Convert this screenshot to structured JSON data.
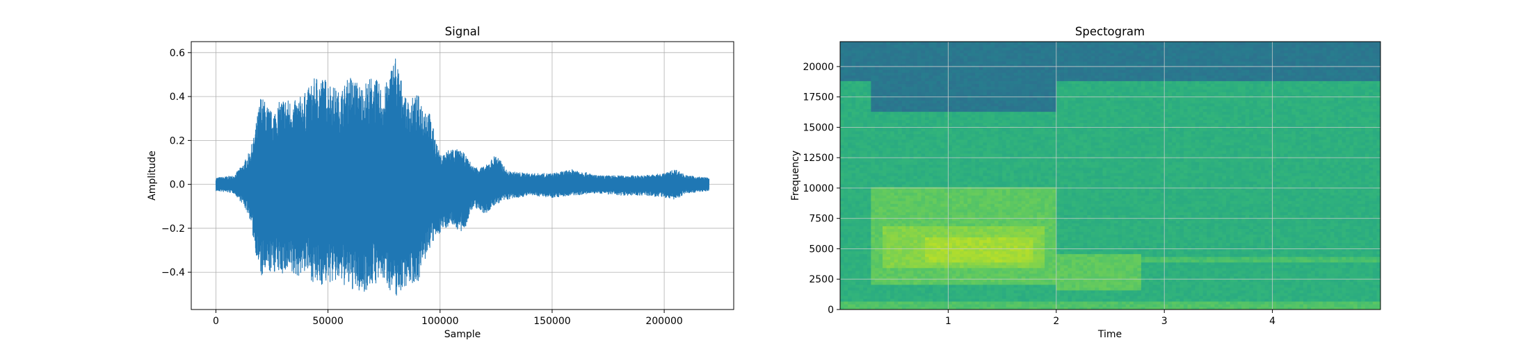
{
  "chart_data": [
    {
      "type": "line",
      "title": "Signal",
      "xlabel": "Sample",
      "ylabel": "Amplitude",
      "xlim": [
        -11000,
        231000
      ],
      "ylim": [
        -0.57,
        0.65
      ],
      "x_ticks": [
        0,
        50000,
        100000,
        150000,
        200000
      ],
      "y_ticks": [
        -0.4,
        -0.2,
        0.0,
        0.2,
        0.4,
        0.6
      ],
      "x_tick_labels": [
        "0",
        "50000",
        "100000",
        "150000",
        "200000"
      ],
      "y_tick_labels": [
        "−0.4",
        "−0.2",
        "0.0",
        "0.2",
        "0.4",
        "0.6"
      ],
      "grid": true,
      "color": "#1f77b4",
      "series": [
        {
          "x": [
            0,
            8000,
            12000,
            15000,
            17000,
            20000,
            25000,
            30000,
            35000,
            40000,
            45000,
            50000,
            55000,
            60000,
            65000,
            70000,
            75000,
            80000,
            85000,
            90000,
            95000,
            100000,
            105000,
            110000,
            115000,
            120000,
            125000,
            130000,
            140000,
            150000,
            160000,
            170000,
            180000,
            190000,
            200000,
            205000,
            210000,
            220000
          ],
          "upper": [
            0.03,
            0.04,
            0.09,
            0.15,
            0.22,
            0.41,
            0.33,
            0.4,
            0.38,
            0.42,
            0.5,
            0.48,
            0.42,
            0.5,
            0.45,
            0.5,
            0.43,
            0.6,
            0.38,
            0.41,
            0.34,
            0.13,
            0.17,
            0.15,
            0.08,
            0.08,
            0.14,
            0.06,
            0.05,
            0.05,
            0.07,
            0.04,
            0.04,
            0.04,
            0.05,
            0.07,
            0.04,
            0.03
          ],
          "lower": [
            -0.03,
            -0.04,
            -0.09,
            -0.15,
            -0.27,
            -0.43,
            -0.4,
            -0.41,
            -0.43,
            -0.4,
            -0.47,
            -0.45,
            -0.45,
            -0.48,
            -0.5,
            -0.46,
            -0.44,
            -0.52,
            -0.46,
            -0.45,
            -0.3,
            -0.22,
            -0.18,
            -0.23,
            -0.1,
            -0.14,
            -0.09,
            -0.07,
            -0.05,
            -0.06,
            -0.05,
            -0.04,
            -0.05,
            -0.05,
            -0.06,
            -0.07,
            -0.04,
            -0.03
          ]
        }
      ]
    },
    {
      "type": "heatmap",
      "title": "Spectogram",
      "xlabel": "Time",
      "ylabel": "Frequency",
      "xlim": [
        0,
        5
      ],
      "ylim": [
        0,
        22050
      ],
      "x_ticks": [
        1,
        2,
        3,
        4
      ],
      "y_ticks": [
        0,
        2500,
        5000,
        7500,
        10000,
        12500,
        15000,
        17500,
        20000
      ],
      "x_tick_labels": [
        "1",
        "2",
        "3",
        "4"
      ],
      "y_tick_labels": [
        "0",
        "2500",
        "5000",
        "7500",
        "10000",
        "12500",
        "15000",
        "17500",
        "20000"
      ],
      "grid": true,
      "colormap": "viridis",
      "colormap_stops": [
        "#31688e",
        "#26828e",
        "#1f9e89",
        "#35b779",
        "#6ece58",
        "#b5de2b",
        "#fde725"
      ],
      "background_color": "#2c6f8c",
      "regions": [
        {
          "t": [
            0,
            5
          ],
          "f": [
            0,
            18800
          ],
          "level": 0.45
        },
        {
          "t": [
            0.3,
            2.0
          ],
          "f": [
            16200,
            22050
          ],
          "level": 0.1
        },
        {
          "t": [
            2.0,
            5
          ],
          "f": [
            18800,
            22050
          ],
          "level": 0.1
        },
        {
          "t": [
            0,
            0.3
          ],
          "f": [
            18800,
            22050
          ],
          "level": 0.1
        },
        {
          "t": [
            0.3,
            2.0
          ],
          "f": [
            2000,
            10000
          ],
          "level": 0.62
        },
        {
          "t": [
            0.4,
            1.9
          ],
          "f": [
            3500,
            7000
          ],
          "level": 0.72
        },
        {
          "t": [
            0.8,
            1.8
          ],
          "f": [
            4000,
            6000
          ],
          "level": 0.8
        },
        {
          "t": [
            2.0,
            2.8
          ],
          "f": [
            1500,
            4500
          ],
          "level": 0.62
        },
        {
          "t": [
            0,
            5
          ],
          "f": [
            0,
            700
          ],
          "level": 0.58
        },
        {
          "t": [
            2.8,
            5
          ],
          "f": [
            3800,
            4400
          ],
          "level": 0.56
        }
      ]
    }
  ]
}
